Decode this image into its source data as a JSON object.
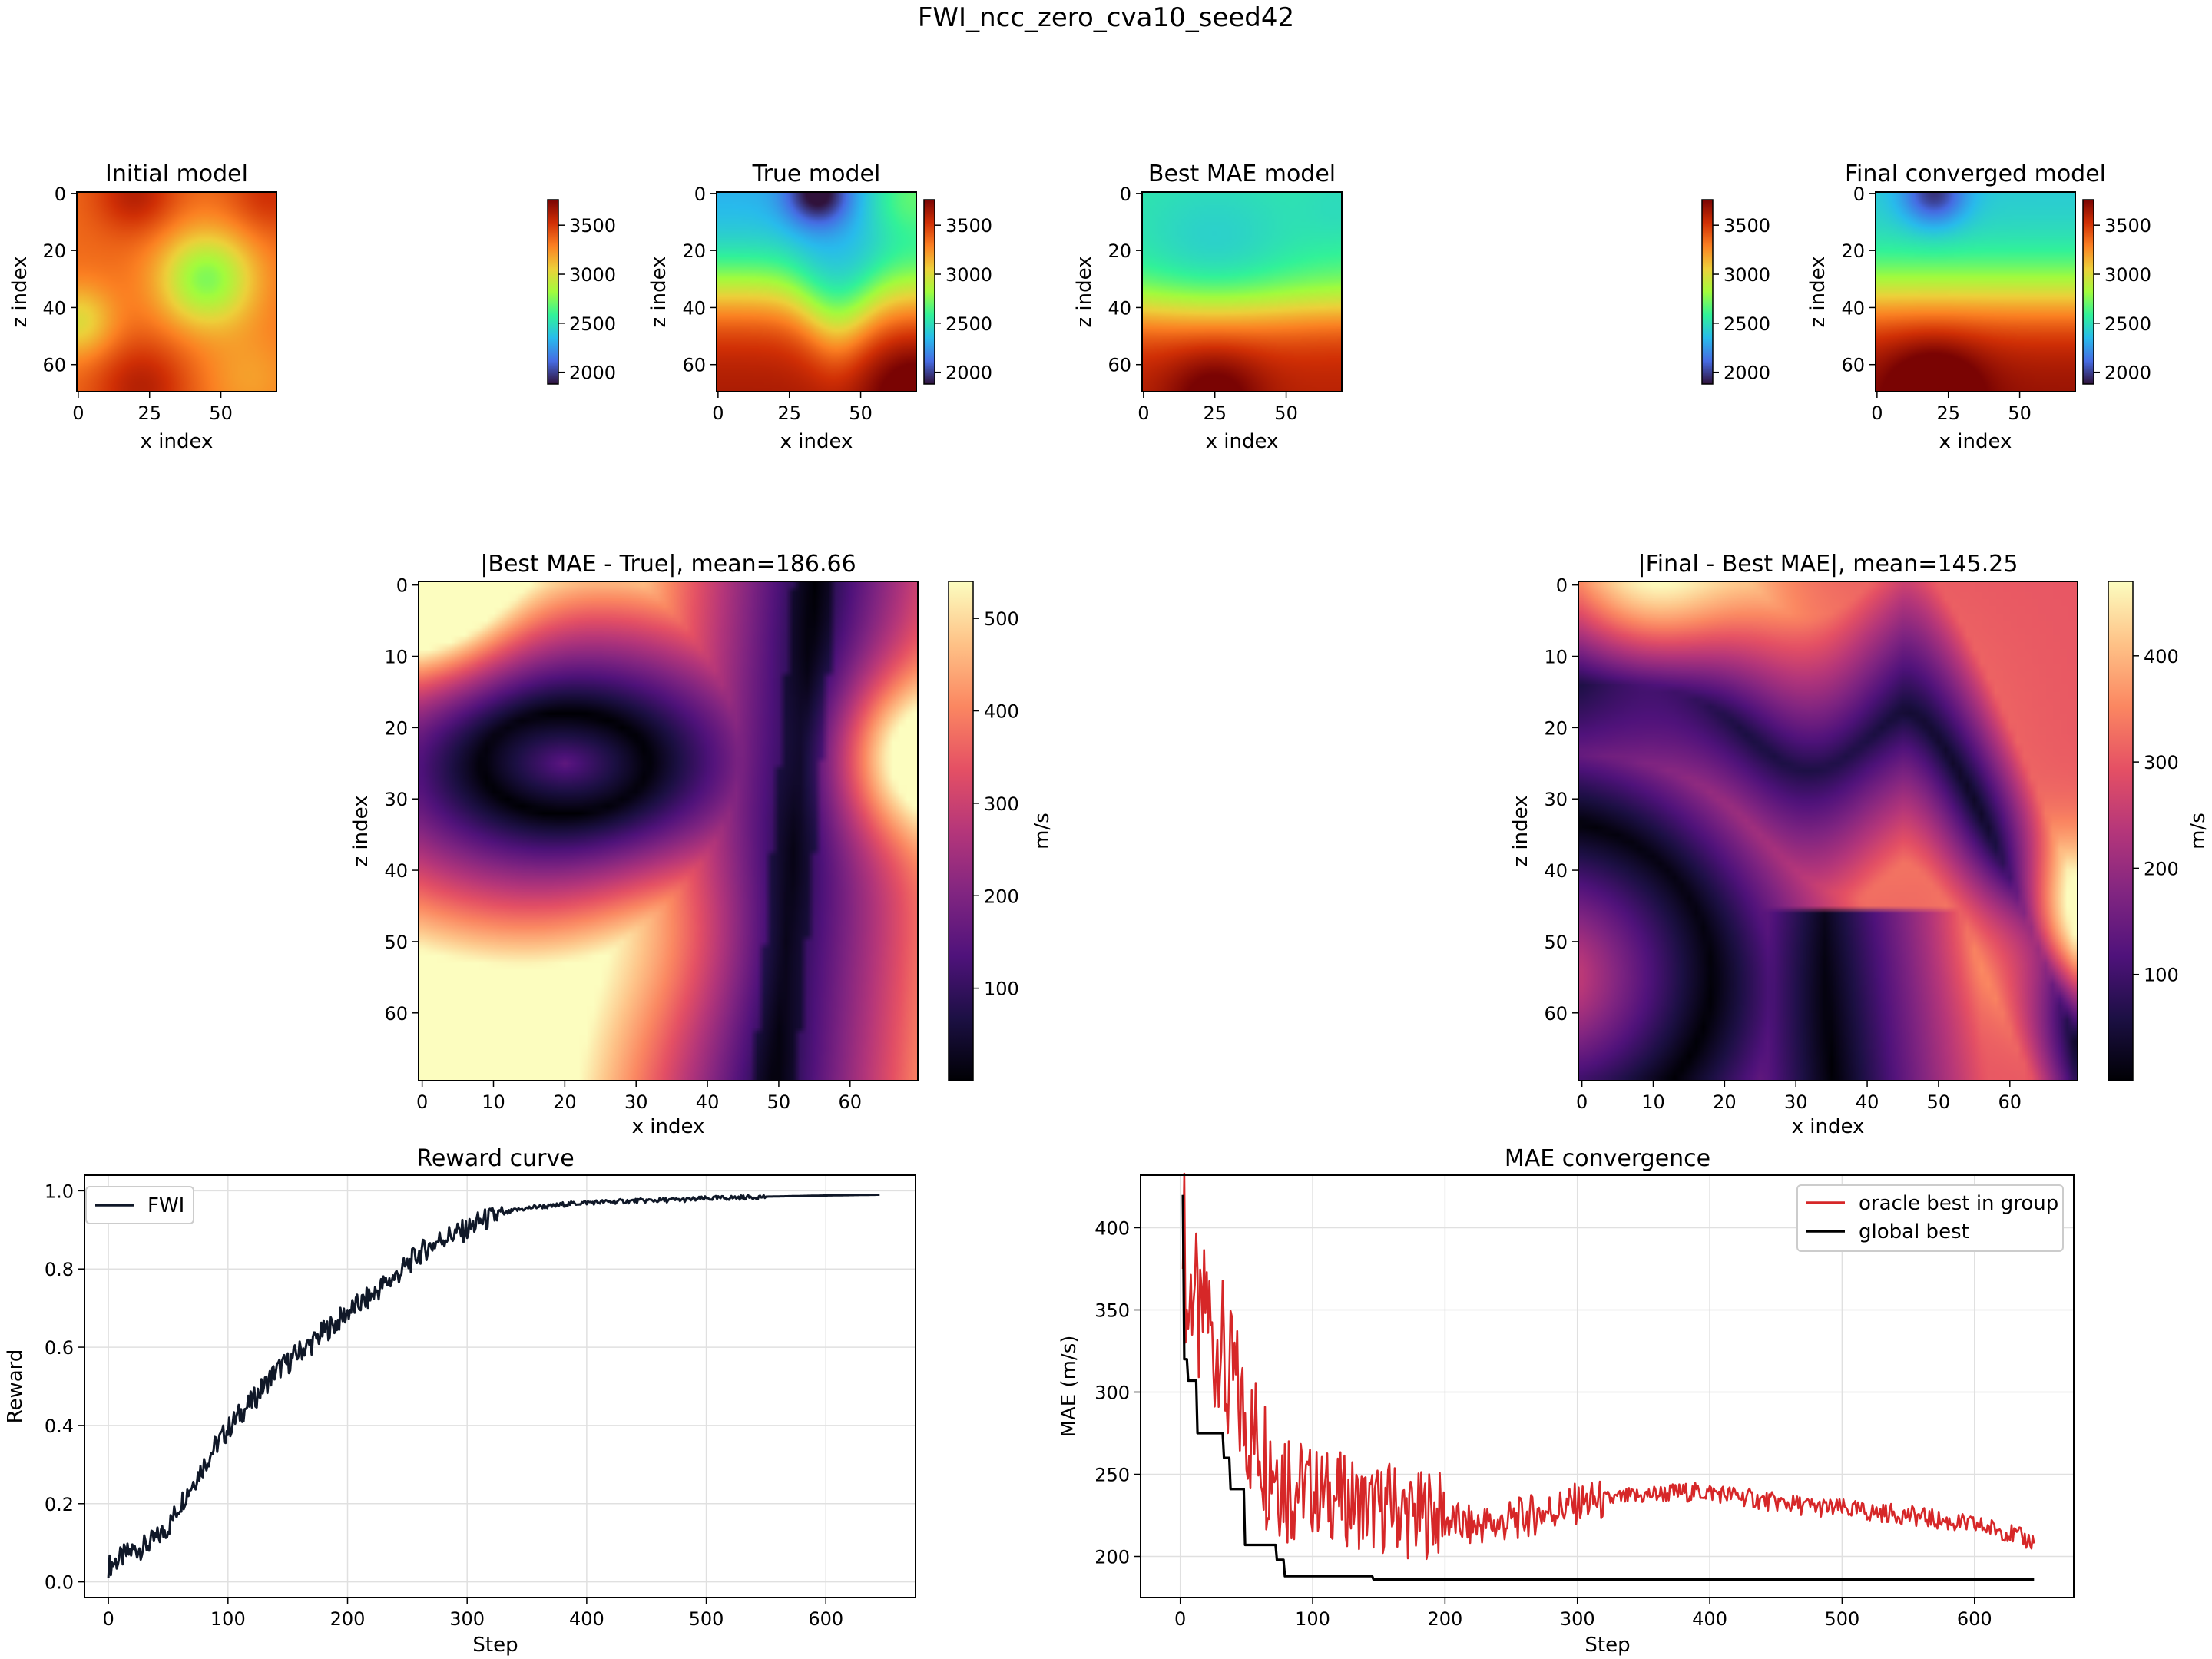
{
  "figure": {
    "title": "FWI_ncc_zero_cva10_seed42"
  },
  "colors": {
    "fwi_line": "#101828",
    "oracle": "#d62728",
    "global": "#000000",
    "grid": "#e0e0e0"
  },
  "colorbars": {
    "velocity_ticks": [
      "3500",
      "3000",
      "2500",
      "2000"
    ],
    "diff1_ticks": [
      "500",
      "400",
      "300",
      "200",
      "100"
    ],
    "diff2_ticks": [
      "400",
      "300",
      "200",
      "100"
    ],
    "diff_unit": "m/s"
  },
  "panels": {
    "initial": {
      "title": "Initial model",
      "xlabel": "x index",
      "ylabel": "z index",
      "xticks": [
        "0",
        "25",
        "50"
      ],
      "yticks": [
        "0",
        "20",
        "40",
        "60"
      ]
    },
    "true": {
      "title": "True model",
      "xlabel": "x index",
      "ylabel": "z index",
      "xticks": [
        "0",
        "25",
        "50"
      ],
      "yticks": [
        "0",
        "20",
        "40",
        "60"
      ]
    },
    "best": {
      "title": "Best MAE model",
      "xlabel": "x index",
      "ylabel": "z index",
      "xticks": [
        "0",
        "25",
        "50"
      ],
      "yticks": [
        "0",
        "20",
        "40",
        "60"
      ]
    },
    "final": {
      "title": "Final converged model",
      "xlabel": "x index",
      "ylabel": "z index",
      "xticks": [
        "0",
        "25",
        "50"
      ],
      "yticks": [
        "0",
        "20",
        "40",
        "60"
      ]
    },
    "diff1": {
      "title": "|Best MAE - True|, mean=186.66",
      "xlabel": "x index",
      "ylabel": "z index",
      "xticks": [
        "0",
        "10",
        "20",
        "30",
        "40",
        "50",
        "60"
      ],
      "yticks": [
        "0",
        "10",
        "20",
        "30",
        "40",
        "50",
        "60"
      ]
    },
    "diff2": {
      "title": "|Final - Best MAE|, mean=145.25",
      "xlabel": "x index",
      "ylabel": "z index",
      "xticks": [
        "0",
        "10",
        "20",
        "30",
        "40",
        "50",
        "60"
      ],
      "yticks": [
        "0",
        "10",
        "20",
        "30",
        "40",
        "50",
        "60"
      ]
    }
  },
  "chart_data": [
    {
      "type": "line",
      "title": "Reward curve",
      "xlabel": "Step",
      "ylabel": "Reward",
      "xlim": [
        -20,
        675
      ],
      "ylim": [
        -0.04,
        1.04
      ],
      "xticks": [
        0,
        100,
        200,
        300,
        400,
        500,
        600
      ],
      "yticks": [
        0.0,
        0.2,
        0.4,
        0.6,
        0.8,
        1.0
      ],
      "ytick_labels": [
        "0.0",
        "0.2",
        "0.4",
        "0.6",
        "0.8",
        "1.0"
      ],
      "grid": true,
      "legend_position": "upper-left",
      "series": [
        {
          "name": "FWI",
          "color": "#101828",
          "points": [
            [
              0,
              0.04
            ],
            [
              10,
              0.06
            ],
            [
              20,
              0.08
            ],
            [
              30,
              0.09
            ],
            [
              40,
              0.11
            ],
            [
              50,
              0.14
            ],
            [
              60,
              0.2
            ],
            [
              70,
              0.25
            ],
            [
              80,
              0.3
            ],
            [
              90,
              0.35
            ],
            [
              100,
              0.39
            ],
            [
              110,
              0.43
            ],
            [
              120,
              0.46
            ],
            [
              130,
              0.5
            ],
            [
              140,
              0.54
            ],
            [
              150,
              0.56
            ],
            [
              160,
              0.59
            ],
            [
              170,
              0.61
            ],
            [
              180,
              0.64
            ],
            [
              190,
              0.66
            ],
            [
              200,
              0.69
            ],
            [
              210,
              0.71
            ],
            [
              220,
              0.73
            ],
            [
              230,
              0.76
            ],
            [
              240,
              0.78
            ],
            [
              250,
              0.81
            ],
            [
              260,
              0.84
            ],
            [
              270,
              0.86
            ],
            [
              280,
              0.88
            ],
            [
              290,
              0.89
            ],
            [
              300,
              0.9
            ],
            [
              310,
              0.92
            ],
            [
              320,
              0.93
            ],
            [
              330,
              0.94
            ],
            [
              340,
              0.95
            ],
            [
              350,
              0.955
            ],
            [
              360,
              0.96
            ],
            [
              370,
              0.96
            ],
            [
              380,
              0.965
            ],
            [
              400,
              0.97
            ],
            [
              420,
              0.972
            ],
            [
              450,
              0.975
            ],
            [
              480,
              0.977
            ],
            [
              500,
              0.98
            ],
            [
              550,
              0.985
            ],
            [
              600,
              0.988
            ],
            [
              645,
              0.99
            ]
          ]
        }
      ]
    },
    {
      "type": "line",
      "title": "MAE convergence",
      "xlabel": "Step",
      "ylabel": "MAE (m/s)",
      "xlim": [
        -30,
        675
      ],
      "ylim": [
        175,
        432
      ],
      "xticks": [
        0,
        100,
        200,
        300,
        400,
        500,
        600
      ],
      "yticks": [
        200,
        250,
        300,
        350,
        400
      ],
      "grid": true,
      "legend_position": "upper-right",
      "series": [
        {
          "name": "oracle best in group",
          "color": "#d62728",
          "points": [
            [
              2,
              420
            ],
            [
              5,
              345
            ],
            [
              10,
              370
            ],
            [
              15,
              330
            ],
            [
              20,
              360
            ],
            [
              25,
              320
            ],
            [
              30,
              340
            ],
            [
              35,
              300
            ],
            [
              40,
              310
            ],
            [
              45,
              290
            ],
            [
              50,
              285
            ],
            [
              55,
              270
            ],
            [
              60,
              275
            ],
            [
              65,
              260
            ],
            [
              70,
              262
            ],
            [
              75,
              255
            ],
            [
              80,
              250
            ],
            [
              90,
              245
            ],
            [
              100,
              240
            ],
            [
              110,
              238
            ],
            [
              120,
              236
            ],
            [
              130,
              233
            ],
            [
              140,
              230
            ],
            [
              150,
              228
            ],
            [
              160,
              232
            ],
            [
              170,
              226
            ],
            [
              180,
              224
            ],
            [
              190,
              228
            ],
            [
              200,
              222
            ],
            [
              210,
              220
            ],
            [
              220,
              218
            ],
            [
              230,
              220
            ],
            [
              240,
              219
            ],
            [
              250,
              222
            ],
            [
              260,
              224
            ],
            [
              270,
              226
            ],
            [
              280,
              228
            ],
            [
              290,
              230
            ],
            [
              300,
              232
            ],
            [
              320,
              234
            ],
            [
              340,
              236
            ],
            [
              360,
              238
            ],
            [
              380,
              239
            ],
            [
              400,
              239
            ],
            [
              420,
              237
            ],
            [
              440,
              234
            ],
            [
              460,
              232
            ],
            [
              480,
              230
            ],
            [
              500,
              229
            ],
            [
              520,
              227
            ],
            [
              540,
              226
            ],
            [
              560,
              224
            ],
            [
              580,
              221
            ],
            [
              600,
              219
            ],
            [
              620,
              216
            ],
            [
              640,
              210
            ],
            [
              645,
              209
            ]
          ]
        },
        {
          "name": "global best",
          "color": "#000000",
          "points": [
            [
              2,
              420
            ],
            [
              3,
              320
            ],
            [
              5,
              320
            ],
            [
              6,
              307
            ],
            [
              12,
              307
            ],
            [
              13,
              275
            ],
            [
              32,
              275
            ],
            [
              33,
              260
            ],
            [
              37,
              260
            ],
            [
              38,
              241
            ],
            [
              48,
              241
            ],
            [
              49,
              207
            ],
            [
              72,
              207
            ],
            [
              73,
              198
            ],
            [
              78,
              198
            ],
            [
              79,
              188
            ],
            [
              145,
              188
            ],
            [
              146,
              186
            ],
            [
              645,
              186
            ]
          ]
        }
      ]
    }
  ]
}
